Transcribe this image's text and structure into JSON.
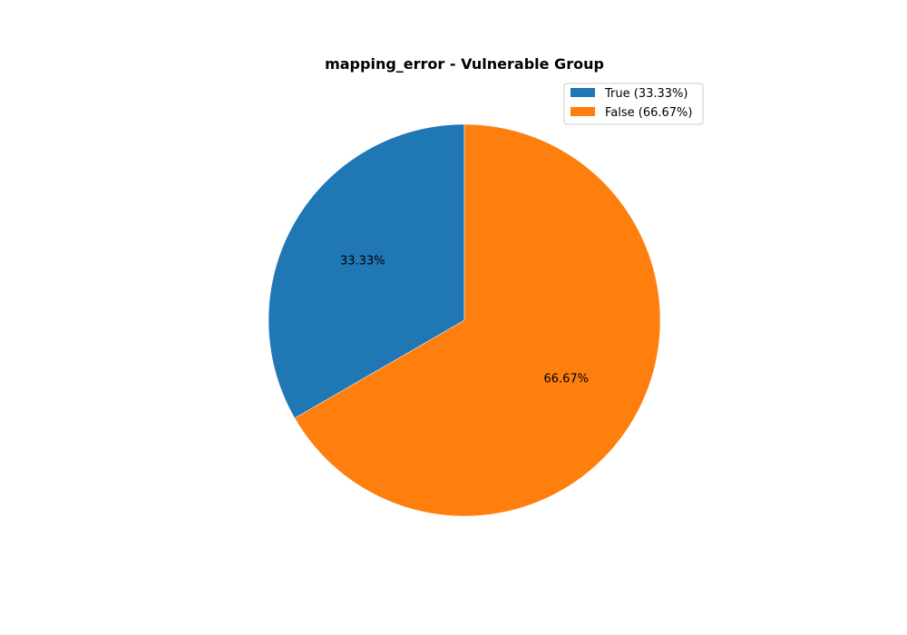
{
  "chart_data": {
    "type": "pie",
    "title": "mapping_error - Vulnerable Group",
    "categories": [
      "True",
      "False"
    ],
    "values": [
      33.33,
      66.67
    ],
    "slice_labels": [
      "33.33%",
      "66.67%"
    ],
    "legend_entries": [
      "True (33.33%)",
      "False (66.67%)"
    ],
    "colors": [
      "#1f77b4",
      "#ff7f0e"
    ],
    "start_angle_deg": 90,
    "direction": "counterclockwise",
    "legend_position": "top-right",
    "grid": false
  }
}
